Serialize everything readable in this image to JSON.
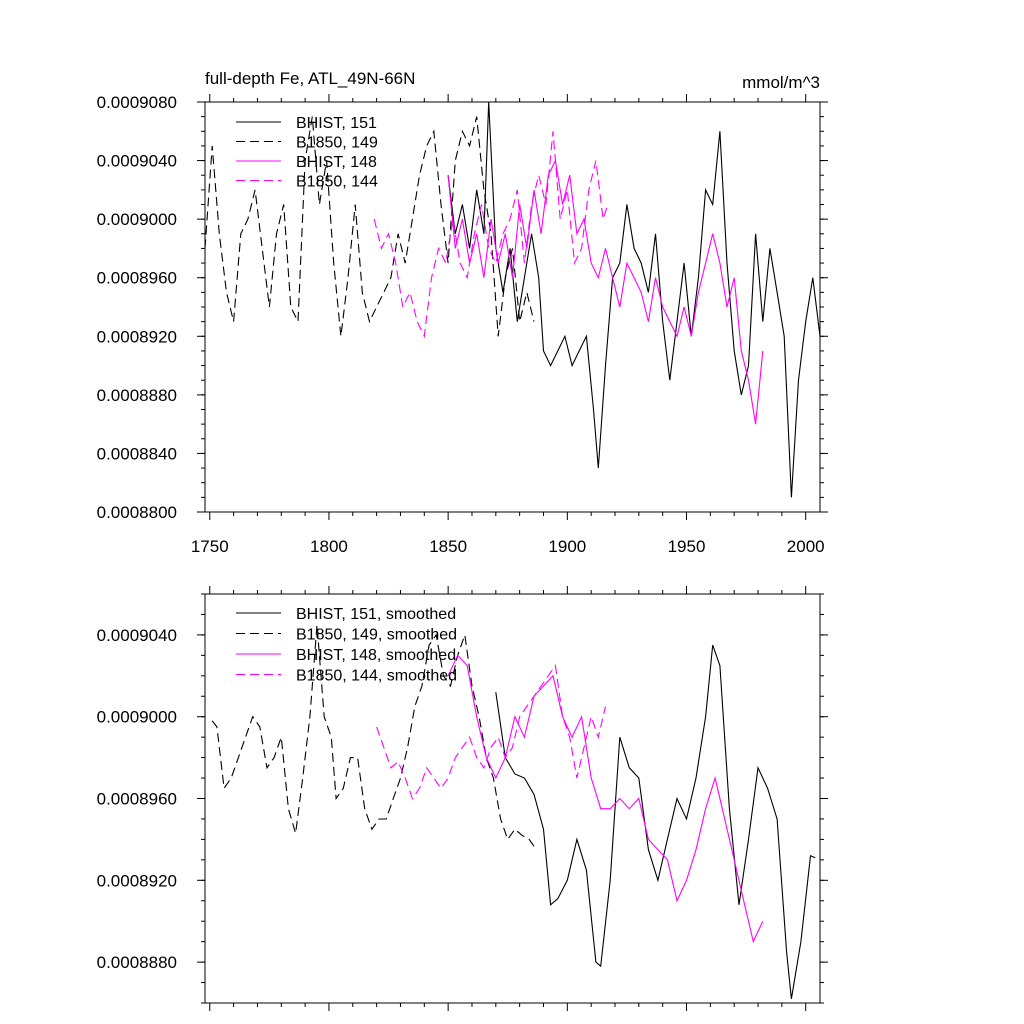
{
  "chart_data": [
    {
      "type": "line",
      "title": "full-depth Fe, ATL_49N-66N",
      "units": "mmol/m^3",
      "xlim": [
        1748,
        2006
      ],
      "ylim": [
        0.00088,
        0.000908
      ],
      "x_ticks": [
        1750,
        1800,
        1850,
        1900,
        1950,
        2000
      ],
      "x_tick_labels": [
        "1750",
        "1800",
        "1850",
        "1900",
        "1950",
        "2000"
      ],
      "y_ticks": [
        0.00088,
        0.000884,
        0.000888,
        0.000892,
        0.000896,
        0.0009,
        0.000904,
        0.000908
      ],
      "y_tick_labels": [
        "0.0008800",
        "0.0008840",
        "0.0008880",
        "0.0008920",
        "0.0008960",
        "0.0009000",
        "0.0009040",
        "0.0009080"
      ],
      "series": [
        {
          "name": "BHIST, 151",
          "color": "#000000",
          "dash": "solid",
          "x": [
            1850,
            1853,
            1856,
            1859,
            1862,
            1865,
            1867,
            1870,
            1873,
            1876,
            1879,
            1882,
            1885,
            1888,
            1890,
            1893,
            1896,
            1899,
            1902,
            1905,
            1908,
            1911,
            1913,
            1916,
            1919,
            1922,
            1925,
            1928,
            1931,
            1934,
            1937,
            1940,
            1943,
            1946,
            1949,
            1952,
            1955,
            1958,
            1961,
            1964,
            1967,
            1970,
            1973,
            1976,
            1979,
            1982,
            1985,
            1988,
            1991,
            1994,
            1997,
            2000,
            2003,
            2006
          ],
          "y": [
            0.000903,
            0.000899,
            0.000901,
            0.000898,
            0.000902,
            0.000899,
            0.000908,
            0.000898,
            0.000895,
            0.000898,
            0.000893,
            0.000896,
            0.000899,
            0.000896,
            0.000891,
            0.00089,
            0.000891,
            0.000892,
            0.00089,
            0.000891,
            0.000892,
            0.000887,
            0.000883,
            0.00089,
            0.000896,
            0.000897,
            0.000901,
            0.000898,
            0.000897,
            0.000895,
            0.000899,
            0.000893,
            0.000889,
            0.000893,
            0.000897,
            0.000892,
            0.000896,
            0.000902,
            0.000901,
            0.000906,
            0.000897,
            0.000891,
            0.000888,
            0.00089,
            0.000899,
            0.000893,
            0.000898,
            0.000895,
            0.000892,
            0.000881,
            0.000889,
            0.000893,
            0.000896,
            0.000892
          ]
        },
        {
          "name": "B1850, 149",
          "color": "#000000",
          "dash": "dashed",
          "x": [
            1748,
            1751,
            1754,
            1757,
            1760,
            1763,
            1766,
            1769,
            1772,
            1775,
            1778,
            1781,
            1784,
            1787,
            1790,
            1793,
            1796,
            1799,
            1802,
            1805,
            1808,
            1811,
            1814,
            1817,
            1820,
            1823,
            1826,
            1829,
            1832,
            1835,
            1838,
            1841,
            1844,
            1847,
            1850,
            1853,
            1856,
            1859,
            1862,
            1865,
            1868,
            1871,
            1874,
            1877,
            1880,
            1883,
            1886
          ],
          "y": [
            0.000898,
            0.000905,
            0.000899,
            0.000895,
            0.000893,
            0.000899,
            0.0009,
            0.000902,
            0.000898,
            0.000894,
            0.000899,
            0.000901,
            0.000894,
            0.000893,
            0.000904,
            0.000907,
            0.000901,
            0.000904,
            0.000897,
            0.000892,
            0.000896,
            0.000901,
            0.000895,
            0.000893,
            0.000894,
            0.000895,
            0.000896,
            0.000899,
            0.000897,
            0.0009,
            0.000903,
            0.000905,
            0.000906,
            0.000901,
            0.000897,
            0.000904,
            0.000906,
            0.000905,
            0.000907,
            0.000902,
            0.000899,
            0.000892,
            0.000896,
            0.000898,
            0.000893,
            0.000895,
            0.000893
          ]
        },
        {
          "name": "BHIST, 148",
          "color": "#ff00ff",
          "dash": "solid",
          "x": [
            1850,
            1853,
            1856,
            1859,
            1862,
            1865,
            1868,
            1871,
            1874,
            1877,
            1880,
            1883,
            1886,
            1889,
            1892,
            1895,
            1898,
            1901,
            1904,
            1907,
            1910,
            1913,
            1916,
            1919,
            1922,
            1925,
            1928,
            1931,
            1934,
            1937,
            1940,
            1943,
            1946,
            1949,
            1952,
            1955,
            1958,
            1961,
            1964,
            1967,
            1970,
            1973,
            1976,
            1979,
            1982
          ],
          "y": [
            0.000903,
            0.000898,
            0.0009,
            0.000897,
            0.000899,
            0.000896,
            0.0009,
            0.000897,
            0.000899,
            0.000896,
            0.000901,
            0.000898,
            0.000902,
            0.000899,
            0.000903,
            0.000904,
            0.000901,
            0.000903,
            0.000899,
            0.0009,
            0.000897,
            0.000896,
            0.000898,
            0.000896,
            0.000894,
            0.000897,
            0.000896,
            0.000895,
            0.000893,
            0.000896,
            0.000894,
            0.000893,
            0.000892,
            0.000894,
            0.000892,
            0.000895,
            0.000897,
            0.000899,
            0.000897,
            0.000894,
            0.000896,
            0.000891,
            0.000889,
            0.000886,
            0.000891
          ]
        },
        {
          "name": "B1850, 144",
          "color": "#ff00ff",
          "dash": "dashed",
          "x": [
            1819,
            1822,
            1825,
            1828,
            1831,
            1834,
            1837,
            1840,
            1843,
            1846,
            1849,
            1852,
            1855,
            1858,
            1861,
            1864,
            1867,
            1870,
            1873,
            1876,
            1879,
            1882,
            1885,
            1888,
            1891,
            1894,
            1897,
            1900,
            1903,
            1906,
            1909,
            1912,
            1915,
            1917
          ],
          "y": [
            0.0009,
            0.000898,
            0.000899,
            0.000897,
            0.000894,
            0.000895,
            0.000893,
            0.000892,
            0.000896,
            0.000898,
            0.000897,
            0.0009,
            0.000897,
            0.000896,
            0.000899,
            0.000901,
            0.000898,
            0.000897,
            0.000899,
            0.0009,
            0.000902,
            0.000897,
            0.000901,
            0.000903,
            0.000901,
            0.000906,
            0.0009,
            0.000902,
            0.000897,
            0.000898,
            0.000902,
            0.000904,
            0.0009,
            0.000901
          ]
        }
      ]
    },
    {
      "type": "line",
      "title": "",
      "xlim": [
        1748,
        2006
      ],
      "ylim": [
        0.000886,
        0.000906
      ],
      "x_ticks": [
        1750,
        1800,
        1850,
        1900,
        1950,
        2000
      ],
      "y_ticks": [
        0.000888,
        0.000892,
        0.000896,
        0.0009,
        0.000904
      ],
      "y_tick_labels": [
        "0.0008880",
        "0.0008920",
        "0.0008960",
        "0.0009000",
        "0.0009040"
      ],
      "series": [
        {
          "name": "BHIST, 151, smoothed",
          "color": "#000000",
          "dash": "solid",
          "x": [
            1870,
            1874,
            1878,
            1882,
            1886,
            1890,
            1893,
            1896,
            1900,
            1904,
            1908,
            1912,
            1914,
            1918,
            1922,
            1926,
            1930,
            1934,
            1938,
            1942,
            1946,
            1950,
            1954,
            1958,
            1961,
            1964,
            1968,
            1972,
            1976,
            1980,
            1984,
            1988,
            1992,
            1994,
            1998,
            2002,
            2004
          ],
          "y": [
            0.0009012,
            0.000898,
            0.0008972,
            0.000897,
            0.0008962,
            0.0008945,
            0.0008908,
            0.0008911,
            0.000892,
            0.000894,
            0.0008925,
            0.000888,
            0.0008878,
            0.000892,
            0.000899,
            0.0008975,
            0.000897,
            0.0008935,
            0.000892,
            0.000894,
            0.000896,
            0.000895,
            0.000897,
            0.0009,
            0.0009035,
            0.0009025,
            0.0008955,
            0.0008908,
            0.000894,
            0.0008975,
            0.0008965,
            0.000895,
            0.0008885,
            0.0008862,
            0.000889,
            0.0008932,
            0.0008931
          ]
        },
        {
          "name": "B1850, 149, smoothed",
          "color": "#000000",
          "dash": "dashed",
          "x": [
            1751,
            1753,
            1756,
            1759,
            1762,
            1765,
            1768,
            1771,
            1774,
            1777,
            1780,
            1783,
            1786,
            1789,
            1792,
            1795,
            1798,
            1801,
            1803,
            1806,
            1809,
            1812,
            1815,
            1818,
            1821,
            1824,
            1827,
            1830,
            1833,
            1836,
            1839,
            1842,
            1845,
            1848,
            1851,
            1854,
            1857,
            1860,
            1863,
            1866,
            1869,
            1872,
            1875,
            1878,
            1881,
            1884,
            1887
          ],
          "y": [
            0.0008998,
            0.0008995,
            0.0008965,
            0.000897,
            0.000898,
            0.000899,
            0.0009,
            0.0008995,
            0.0008975,
            0.000898,
            0.000899,
            0.0008955,
            0.0008943,
            0.000897,
            0.0009,
            0.0009045,
            0.0009,
            0.000899,
            0.000896,
            0.0008965,
            0.000898,
            0.000898,
            0.0008955,
            0.0008945,
            0.000895,
            0.000895,
            0.000896,
            0.000897,
            0.0008985,
            0.0009005,
            0.0009015,
            0.0009035,
            0.000904,
            0.000902,
            0.0009015,
            0.000903,
            0.000904,
            0.0009015,
            0.0009,
            0.000898,
            0.000897,
            0.000895,
            0.000894,
            0.0008945,
            0.0008942,
            0.000894,
            0.0008935
          ]
        },
        {
          "name": "BHIST, 148, smoothed",
          "color": "#ff00ff",
          "dash": "solid",
          "x": [
            1850,
            1854,
            1858,
            1862,
            1866,
            1870,
            1874,
            1878,
            1882,
            1886,
            1890,
            1894,
            1898,
            1902,
            1906,
            1910,
            1914,
            1918,
            1922,
            1926,
            1930,
            1934,
            1938,
            1942,
            1946,
            1950,
            1954,
            1958,
            1962,
            1966,
            1970,
            1974,
            1978,
            1982
          ],
          "y": [
            0.000902,
            0.000903,
            0.0009025,
            0.0009,
            0.000898,
            0.000897,
            0.000898,
            0.0009,
            0.000899,
            0.000901,
            0.0009015,
            0.000902,
            0.0009,
            0.000899,
            0.0009,
            0.000897,
            0.0008955,
            0.0008955,
            0.000896,
            0.0008955,
            0.000896,
            0.000894,
            0.0008935,
            0.000893,
            0.000891,
            0.000892,
            0.0008935,
            0.0008955,
            0.000897,
            0.000895,
            0.000893,
            0.000891,
            0.000889,
            0.00089
          ]
        },
        {
          "name": "B1850, 144, smoothed",
          "color": "#ff00ff",
          "dash": "dashed",
          "x": [
            1820,
            1823,
            1826,
            1829,
            1832,
            1835,
            1838,
            1841,
            1844,
            1847,
            1850,
            1853,
            1856,
            1859,
            1862,
            1865,
            1868,
            1871,
            1874,
            1877,
            1880,
            1883,
            1886,
            1889,
            1892,
            1895,
            1898,
            1901,
            1904,
            1907,
            1910,
            1913,
            1916
          ],
          "y": [
            0.0008995,
            0.0008985,
            0.0008975,
            0.0008978,
            0.000897,
            0.000896,
            0.0008965,
            0.0008975,
            0.000897,
            0.0008965,
            0.000897,
            0.000898,
            0.0008985,
            0.000899,
            0.000898,
            0.0008975,
            0.0008985,
            0.000899,
            0.000898,
            0.0008985,
            0.0009,
            0.0009005,
            0.000901,
            0.0009015,
            0.000902,
            0.0009025,
            0.0009,
            0.000899,
            0.000897,
            0.0008985,
            0.0009,
            0.000899,
            0.0009005
          ]
        }
      ]
    }
  ]
}
